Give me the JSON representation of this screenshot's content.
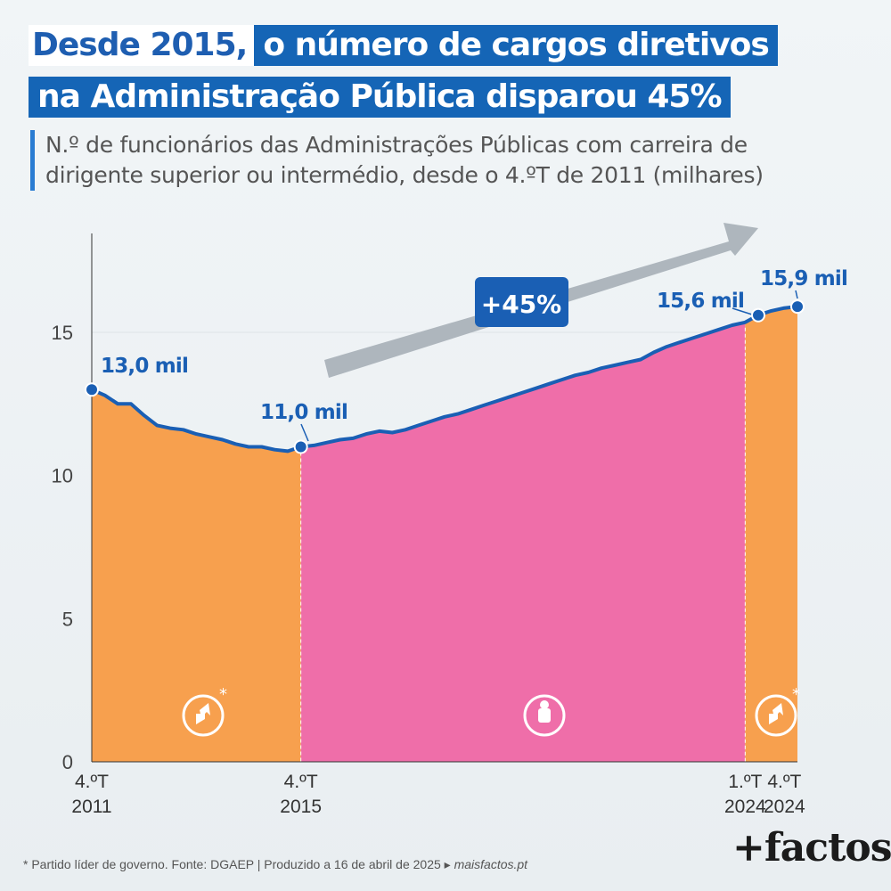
{
  "headline": {
    "part1": "Desde 2015,",
    "part2": "o número de cargos diretivos",
    "part3": "na Administração Pública disparou 45%"
  },
  "subtitle": "N.º de funcionários das Administrações Públicas com carreira de dirigente superior ou intermédio, desde o 4.ºT de 2011 (milhares)",
  "chart_data": {
    "type": "area",
    "title": "",
    "xlabel": "",
    "ylabel": "",
    "ylim": [
      0,
      18
    ],
    "yticks": [
      0,
      5,
      10,
      15
    ],
    "x_tick_labels": [
      {
        "q": 0,
        "line1": "4.ºT",
        "line2": "2011"
      },
      {
        "q": 16,
        "line1": "4.ºT",
        "line2": "2015"
      },
      {
        "q": 50,
        "line1": "1.ºT",
        "line2": "2024"
      },
      {
        "q": 53,
        "line1": "4.ºT",
        "line2": "2024"
      }
    ],
    "series": [
      {
        "values": [
          13.0,
          12.8,
          12.5,
          12.5,
          12.1,
          11.75,
          11.65,
          11.6,
          11.45,
          11.35,
          11.25,
          11.1,
          11.0,
          11.0,
          10.9,
          10.85,
          11.0,
          11.05,
          11.15,
          11.25,
          11.3,
          11.45,
          11.55,
          11.5,
          11.6,
          11.75,
          11.9,
          12.05,
          12.15,
          12.3,
          12.45,
          12.6,
          12.75,
          12.9,
          13.05,
          13.2,
          13.35,
          13.5,
          13.6,
          13.75,
          13.85,
          13.95,
          14.05,
          14.3,
          14.5,
          14.65,
          14.8,
          14.95,
          15.1,
          15.25,
          15.35,
          15.6,
          15.75,
          15.85,
          15.9
        ]
      }
    ],
    "periods": [
      {
        "from": 0,
        "to": 16,
        "color": "#f7a04e",
        "icon": "ps-logo-icon",
        "asterisk": "*"
      },
      {
        "from": 16,
        "to": 50,
        "color": "#ef6ea9",
        "icon": "fist-rose-icon",
        "asterisk": ""
      },
      {
        "from": 50,
        "to": 54,
        "color": "#f7a04e",
        "icon": "ps-logo-icon",
        "asterisk": "*"
      }
    ],
    "annotations": [
      {
        "q": 0,
        "value": 13.0,
        "label": "13,0 mil"
      },
      {
        "q": 16,
        "value": 11.0,
        "label": "11,0 mil"
      },
      {
        "q": 51,
        "value": 15.6,
        "label": "15,6 mil"
      },
      {
        "q": 54,
        "value": 15.9,
        "label": "15,9 mil"
      }
    ],
    "trend_label": "+45%",
    "colors": {
      "line": "#1a5fb4",
      "orange": "#f7a04e",
      "pink": "#ef6ea9",
      "arrow": "#aeb6bd"
    }
  },
  "footer": {
    "note": "* Partido líder de governo. Fonte: DGAEP | Produzido a 16 de abril de 2025 ▸ ",
    "link": "maisfactos.pt"
  },
  "brand": "+factos"
}
